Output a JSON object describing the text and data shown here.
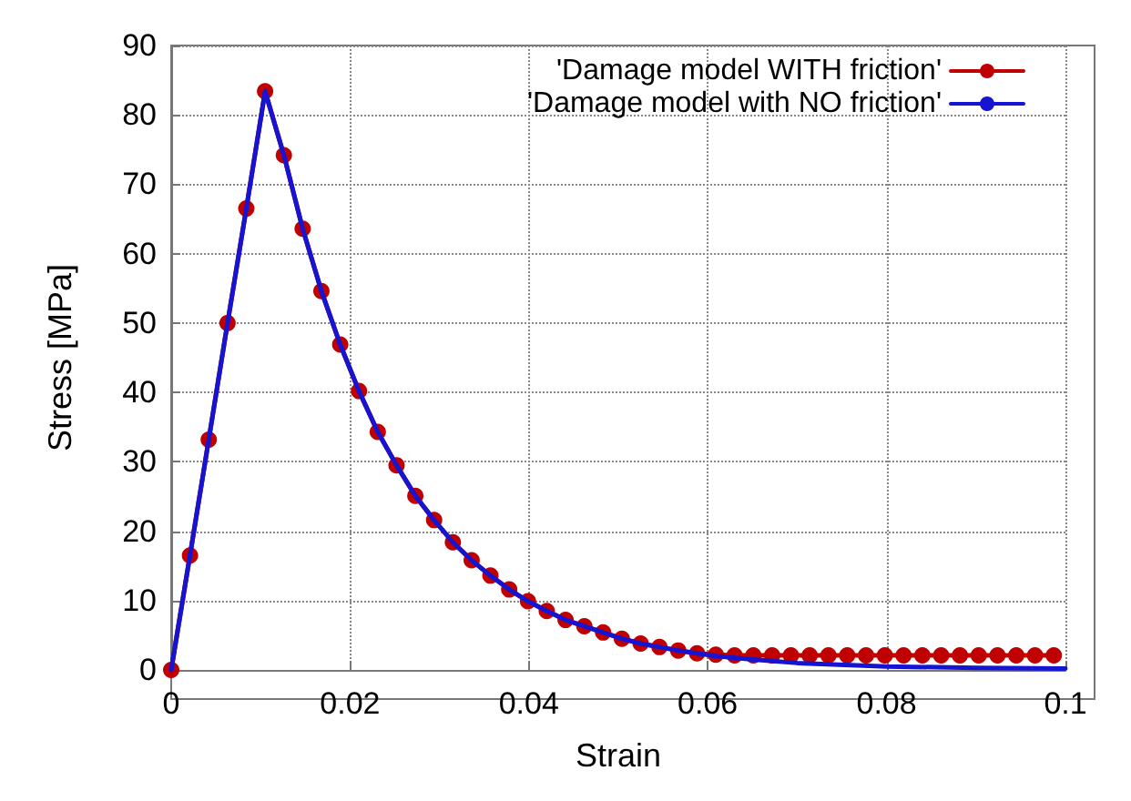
{
  "chart_data": {
    "type": "line",
    "xlabel": "Strain",
    "ylabel": "Stress [MPa]",
    "xlim": [
      0,
      0.1
    ],
    "xticks": [
      0,
      0.02,
      0.04,
      0.06,
      0.08,
      {
        "value": 0.1,
        "label": "0.1"
      }
    ],
    "ylim": [
      0,
      90
    ],
    "yticks": [
      0,
      10,
      20,
      30,
      40,
      50,
      60,
      70,
      80,
      90
    ],
    "grid": true,
    "legend": "top right",
    "line_style": "solid",
    "series": [
      {
        "name": "'Damage model WITH friction'",
        "color": "#c00000",
        "marker": "circle",
        "x": [
          0,
          0.0021,
          0.0042,
          0.0063,
          0.0084,
          0.0105,
          0.0126,
          0.0147,
          0.0168,
          0.0189,
          0.021,
          0.0231,
          0.0252,
          0.0273,
          0.0294,
          0.0315,
          0.0336,
          0.0357,
          0.0378,
          0.0399,
          0.042,
          0.0441,
          0.0462,
          0.0483,
          0.0504,
          0.0525,
          0.0546,
          0.0567,
          0.0588,
          0.0609,
          0.063,
          0.0651,
          0.0672,
          0.0693,
          0.0714,
          0.0735,
          0.0756,
          0.0777,
          0.0798,
          0.0819,
          0.084,
          0.0861,
          0.0882,
          0.0903,
          0.0924,
          0.0945,
          0.0966,
          0.0987
        ],
        "values": [
          0,
          16.5,
          33.2,
          50,
          66.5,
          83.4,
          74.2,
          63.6,
          54.6,
          46.9,
          40.2,
          34.3,
          29.5,
          25.1,
          21.6,
          18.4,
          15.8,
          13.6,
          11.6,
          9.9,
          8.5,
          7.2,
          6.3,
          5.4,
          4.5,
          3.8,
          3.3,
          2.8,
          2.4,
          2.2,
          2.1,
          2.1,
          2.1,
          2.1,
          2.1,
          2.1,
          2.1,
          2.1,
          2.1,
          2.1,
          2.1,
          2.1,
          2.1,
          2.1,
          2.1,
          2.1,
          2.1,
          2.1
        ]
      },
      {
        "name": "'Damage model with NO friction'",
        "color": "#1414d2",
        "marker": "none",
        "x": [
          0,
          0.0021,
          0.0042,
          0.0063,
          0.0084,
          0.0105,
          0.0126,
          0.0147,
          0.0168,
          0.0189,
          0.021,
          0.0231,
          0.0252,
          0.0273,
          0.0294,
          0.0315,
          0.0336,
          0.0357,
          0.0378,
          0.0399,
          0.042,
          0.0441,
          0.0462,
          0.0483,
          0.0504,
          0.0525,
          0.0546,
          0.0567,
          0.0588,
          0.0609,
          0.065,
          0.07,
          0.08,
          0.09,
          0.1
        ],
        "values": [
          0,
          16.5,
          33.2,
          50,
          66.5,
          83.4,
          74.2,
          63.6,
          54.6,
          46.9,
          40.2,
          34.3,
          29.5,
          25.1,
          21.6,
          18.4,
          15.8,
          13.6,
          11.6,
          9.9,
          8.5,
          7.2,
          6.3,
          5.4,
          4.5,
          3.8,
          3.3,
          2.8,
          2.4,
          2.0,
          1.5,
          1.0,
          0.5,
          0.3,
          0.2
        ]
      }
    ]
  }
}
